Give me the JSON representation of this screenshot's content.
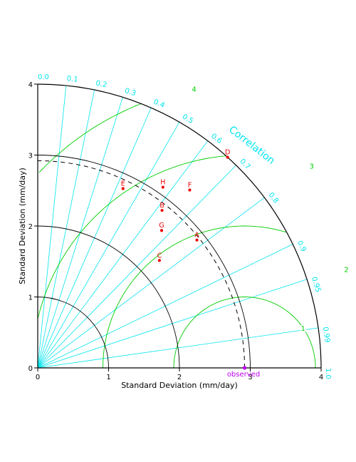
{
  "chart_data": {
    "type": "scatter",
    "diagram": "taylor",
    "xlabel": "Standard Deviation (mm/day)",
    "ylabel": "Standard Deviation (mm/day)",
    "correlation_label": "Correlation",
    "observed_label": "observed",
    "std_max": 4,
    "reference_std": 2.92,
    "std_ticks": [
      "0",
      "1",
      "2",
      "3",
      "4"
    ],
    "std_arcs": [
      1,
      2,
      3,
      4
    ],
    "correlation_ticks": [
      {
        "r": 0.0,
        "label": "0.0"
      },
      {
        "r": 0.1,
        "label": "0.1"
      },
      {
        "r": 0.2,
        "label": "0.2"
      },
      {
        "r": 0.3,
        "label": "0.3"
      },
      {
        "r": 0.4,
        "label": "0.4"
      },
      {
        "r": 0.5,
        "label": "0.5"
      },
      {
        "r": 0.6,
        "label": "0.6"
      },
      {
        "r": 0.7,
        "label": "0.7"
      },
      {
        "r": 0.8,
        "label": "0.8"
      },
      {
        "r": 0.9,
        "label": "0.9"
      },
      {
        "r": 0.95,
        "label": "0.95"
      },
      {
        "r": 0.99,
        "label": "0.99"
      },
      {
        "r": 1.0,
        "label": "1.0"
      }
    ],
    "rmsd_contours": [
      {
        "value": 1,
        "label": "1"
      },
      {
        "value": 2,
        "label": "2"
      },
      {
        "value": 3,
        "label": "3"
      },
      {
        "value": 4,
        "label": "4"
      }
    ],
    "points": [
      {
        "label": "A",
        "std": 2.88,
        "correlation": 0.78
      },
      {
        "label": "B",
        "std": 2.83,
        "correlation": 0.62
      },
      {
        "label": "C",
        "std": 2.29,
        "correlation": 0.75
      },
      {
        "label": "D",
        "std": 4.0,
        "correlation": 0.67
      },
      {
        "label": "E",
        "std": 2.8,
        "correlation": 0.43
      },
      {
        "label": "F",
        "std": 3.3,
        "correlation": 0.65
      },
      {
        "label": "G",
        "std": 2.61,
        "correlation": 0.67
      },
      {
        "label": "H",
        "std": 3.1,
        "correlation": 0.57
      }
    ],
    "colors": {
      "axes": "#000000",
      "correlation": "#00e5ee",
      "rmsd": "#00cd00",
      "points": "#ee0000",
      "observed": "#bb00ee"
    }
  }
}
